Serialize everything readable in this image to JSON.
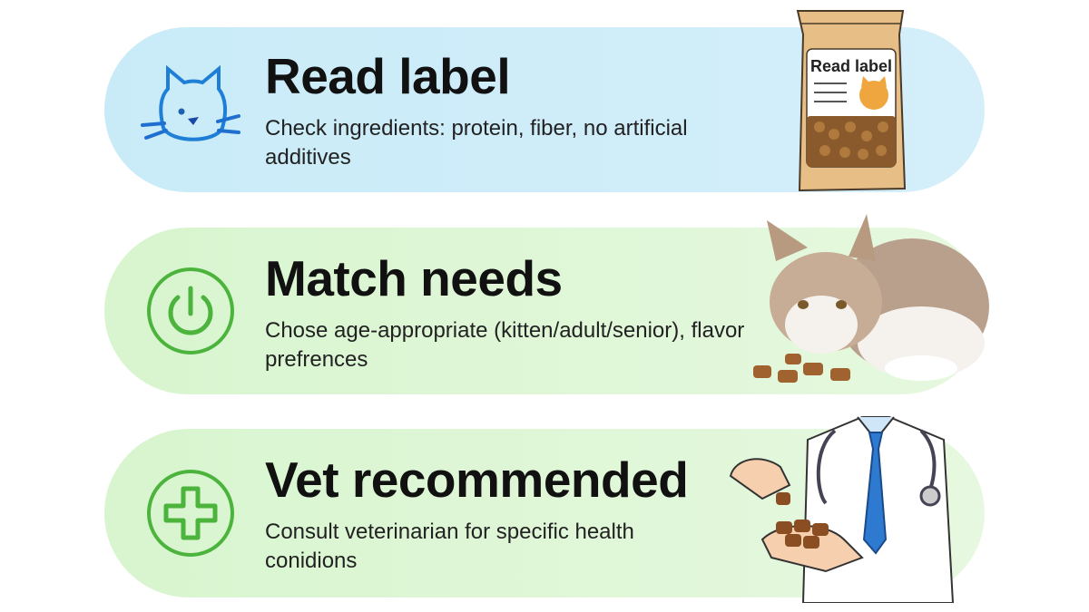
{
  "items": [
    {
      "title": "Read label",
      "description": "Check ingredients: protein, fiber, no artificial additives",
      "icon": "cat-face-icon",
      "accent": "#1f7fd6",
      "illustration": "food-bag",
      "bag_label": "Read label"
    },
    {
      "title": "Match needs",
      "description": "Chose age-appropriate (kitten/adult/senior), flavor prefrences",
      "icon": "power-icon",
      "accent": "#4cb43c",
      "illustration": "cat-eating"
    },
    {
      "title": "Vet recommended",
      "description": "Consult veterinarian for specific health conidions",
      "icon": "plus-cross-icon",
      "accent": "#4cb43c",
      "illustration": "vet-hands"
    }
  ],
  "colors": {
    "blue_card": "#cdedf9",
    "green_card": "#dcf6d3"
  }
}
